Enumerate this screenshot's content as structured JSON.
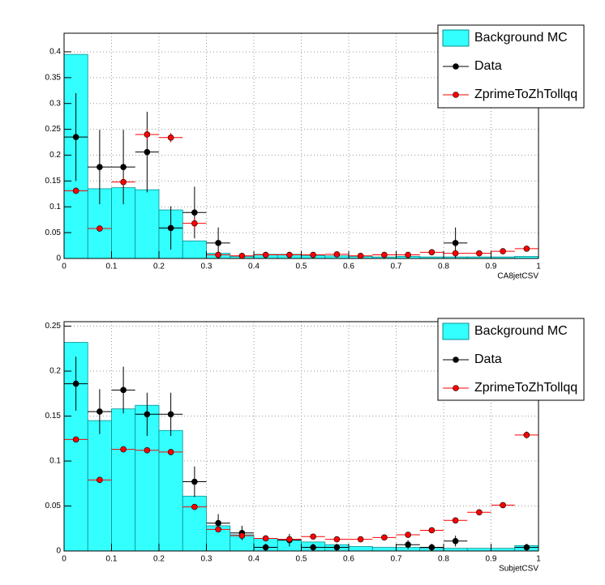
{
  "chart_data": [
    {
      "type": "histogram",
      "xlabel": "CA8jetCSV",
      "bins": [
        0,
        0.05,
        0.1,
        0.15,
        0.2,
        0.25,
        0.3,
        0.35,
        0.4,
        0.45,
        0.5,
        0.55,
        0.6,
        0.65,
        0.7,
        0.75,
        0.8,
        0.85,
        0.9,
        0.95,
        1
      ],
      "xlim": [
        0,
        1
      ],
      "xticks": [
        0,
        0.1,
        0.2,
        0.3,
        0.4,
        0.5,
        0.6,
        0.7,
        0.8,
        0.9,
        1
      ],
      "ylim": [
        0,
        0.436
      ],
      "yticks": [
        0,
        0.05,
        0.1,
        0.15,
        0.2,
        0.25,
        0.3,
        0.35,
        0.4
      ],
      "grid": true,
      "series": [
        {
          "name": "Background MC",
          "style": "filled",
          "color": "#33ffff",
          "values": [
            0.395,
            0.135,
            0.137,
            0.133,
            0.094,
            0.034,
            0.01,
            0.004,
            0.008,
            0.008,
            0.006,
            0.005,
            0.004,
            0.003,
            0.004,
            0.003,
            0.003,
            0.003,
            0.003,
            0.004
          ]
        },
        {
          "name": "Data",
          "style": "markers",
          "color": "#000000",
          "values": [
            0.235,
            0.177,
            0.177,
            0.206,
            0.059,
            0.089,
            0.03,
            null,
            null,
            null,
            null,
            null,
            null,
            null,
            null,
            null,
            0.03,
            null,
            null,
            null
          ],
          "errors": [
            0.085,
            0.072,
            0.072,
            0.078,
            0.042,
            0.05,
            0.03,
            null,
            null,
            null,
            null,
            null,
            null,
            null,
            null,
            null,
            0.03,
            null,
            null,
            null
          ]
        },
        {
          "name": "ZprimeToZhTollqq",
          "style": "markers",
          "color": "#ff0000",
          "values": [
            0.131,
            0.058,
            0.148,
            0.24,
            0.234,
            0.068,
            0.007,
            0.005,
            0.007,
            0.007,
            0.007,
            0.008,
            0.005,
            0.007,
            0.007,
            0.012,
            0.01,
            0.01,
            0.014,
            0.019
          ],
          "errors": [
            0.006,
            0.004,
            0.007,
            0.01,
            0.009,
            0.01,
            0.002,
            0.002,
            0.002,
            0.002,
            0.002,
            0.002,
            0.002,
            0.002,
            0.002,
            0.002,
            0.002,
            0.002,
            0.002,
            0.002
          ]
        }
      ]
    },
    {
      "type": "histogram",
      "xlabel": "SubjetCSV",
      "bins": [
        0,
        0.05,
        0.1,
        0.15,
        0.2,
        0.25,
        0.3,
        0.35,
        0.4,
        0.45,
        0.5,
        0.55,
        0.6,
        0.65,
        0.7,
        0.75,
        0.8,
        0.85,
        0.9,
        0.95,
        1
      ],
      "xlim": [
        0,
        1
      ],
      "xticks": [
        0,
        0.1,
        0.2,
        0.3,
        0.4,
        0.5,
        0.6,
        0.7,
        0.8,
        0.9,
        1
      ],
      "ylim": [
        0,
        0.255
      ],
      "yticks": [
        0,
        0.05,
        0.1,
        0.15,
        0.2,
        0.25
      ],
      "grid": true,
      "series": [
        {
          "name": "Background MC",
          "style": "filled",
          "color": "#33ffff",
          "values": [
            0.232,
            0.145,
            0.158,
            0.162,
            0.134,
            0.061,
            0.028,
            0.018,
            0.014,
            0.012,
            0.01,
            0.007,
            0.005,
            0.004,
            0.004,
            0.003,
            0.003,
            0.003,
            0.003,
            0.006
          ]
        },
        {
          "name": "Data",
          "style": "markers",
          "color": "#000000",
          "values": [
            0.186,
            0.155,
            0.179,
            0.152,
            0.152,
            0.077,
            0.031,
            0.02,
            0.004,
            0.012,
            0.004,
            0.004,
            null,
            null,
            0.007,
            0.004,
            0.011,
            null,
            null,
            0.004
          ],
          "errors": [
            0.03,
            0.025,
            0.026,
            0.024,
            0.024,
            0.017,
            0.01,
            0.008,
            0.004,
            0.007,
            0.004,
            0.004,
            null,
            null,
            0.005,
            0.004,
            0.006,
            null,
            null,
            0.004
          ]
        },
        {
          "name": "ZprimeToZhTollqq",
          "style": "markers",
          "color": "#ff0000",
          "values": [
            0.124,
            0.079,
            0.113,
            0.112,
            0.11,
            0.049,
            0.024,
            0.017,
            0.014,
            0.013,
            0.016,
            0.013,
            0.013,
            0.015,
            0.018,
            0.023,
            0.034,
            0.043,
            0.051,
            0.129
          ],
          "errors": [
            0.003,
            0.003,
            0.003,
            0.003,
            0.003,
            0.002,
            0.002,
            0.002,
            0.002,
            0.002,
            0.002,
            0.002,
            0.002,
            0.002,
            0.002,
            0.002,
            0.003,
            0.003,
            0.003,
            0.004
          ]
        }
      ]
    }
  ]
}
